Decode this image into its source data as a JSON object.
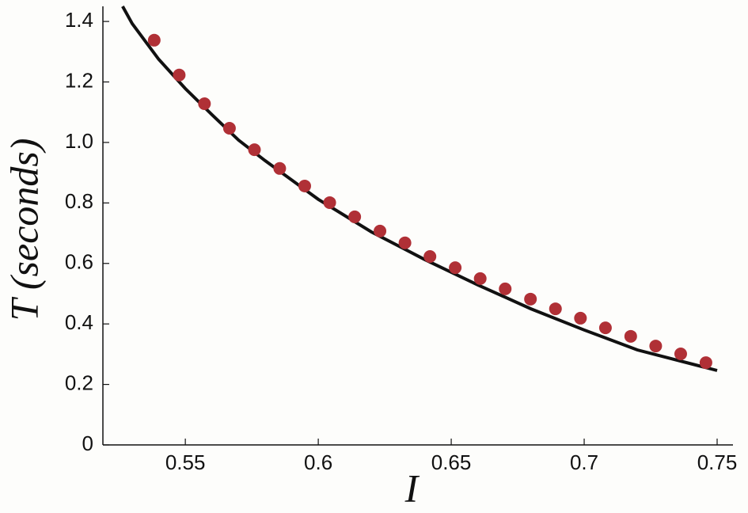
{
  "chart_data": {
    "type": "line",
    "xlabel": "I",
    "ylabel": "T (seconds)",
    "xlim": [
      0.519,
      0.75
    ],
    "ylim": [
      0,
      1.45
    ],
    "xticks": [
      0.55,
      0.6,
      0.65,
      0.7,
      0.75
    ],
    "yticks": [
      0,
      0.2,
      0.4,
      0.6,
      0.8,
      {
        "value": 1.0,
        "label": "1.0"
      },
      1.2,
      1.4
    ],
    "series": [
      {
        "mode": "line",
        "color": "#111111",
        "x": [
          0.5264,
          0.53,
          0.54,
          0.55,
          0.56,
          0.57,
          0.58,
          0.6,
          0.62,
          0.64,
          0.66,
          0.68,
          0.7,
          0.72,
          0.75
        ],
        "values": [
          1.45,
          1.393,
          1.275,
          1.178,
          1.092,
          1.008,
          0.94,
          0.812,
          0.704,
          0.613,
          0.529,
          0.45,
          0.38,
          0.314,
          0.246
        ]
      },
      {
        "mode": "markers",
        "color": "#b03036",
        "x": [
          0.5383,
          0.5477,
          0.5572,
          0.5666,
          0.576,
          0.5855,
          0.5949,
          0.6043,
          0.6137,
          0.6232,
          0.6326,
          0.642,
          0.6515,
          0.6609,
          0.6703,
          0.6798,
          0.6892,
          0.6986,
          0.708,
          0.7175,
          0.7269,
          0.7363,
          0.7458
        ],
        "values": [
          1.338,
          1.223,
          1.128,
          1.047,
          0.976,
          0.914,
          0.856,
          0.801,
          0.754,
          0.707,
          0.668,
          0.623,
          0.586,
          0.55,
          0.516,
          0.482,
          0.45,
          0.419,
          0.387,
          0.359,
          0.327,
          0.301,
          0.272
        ]
      }
    ]
  }
}
